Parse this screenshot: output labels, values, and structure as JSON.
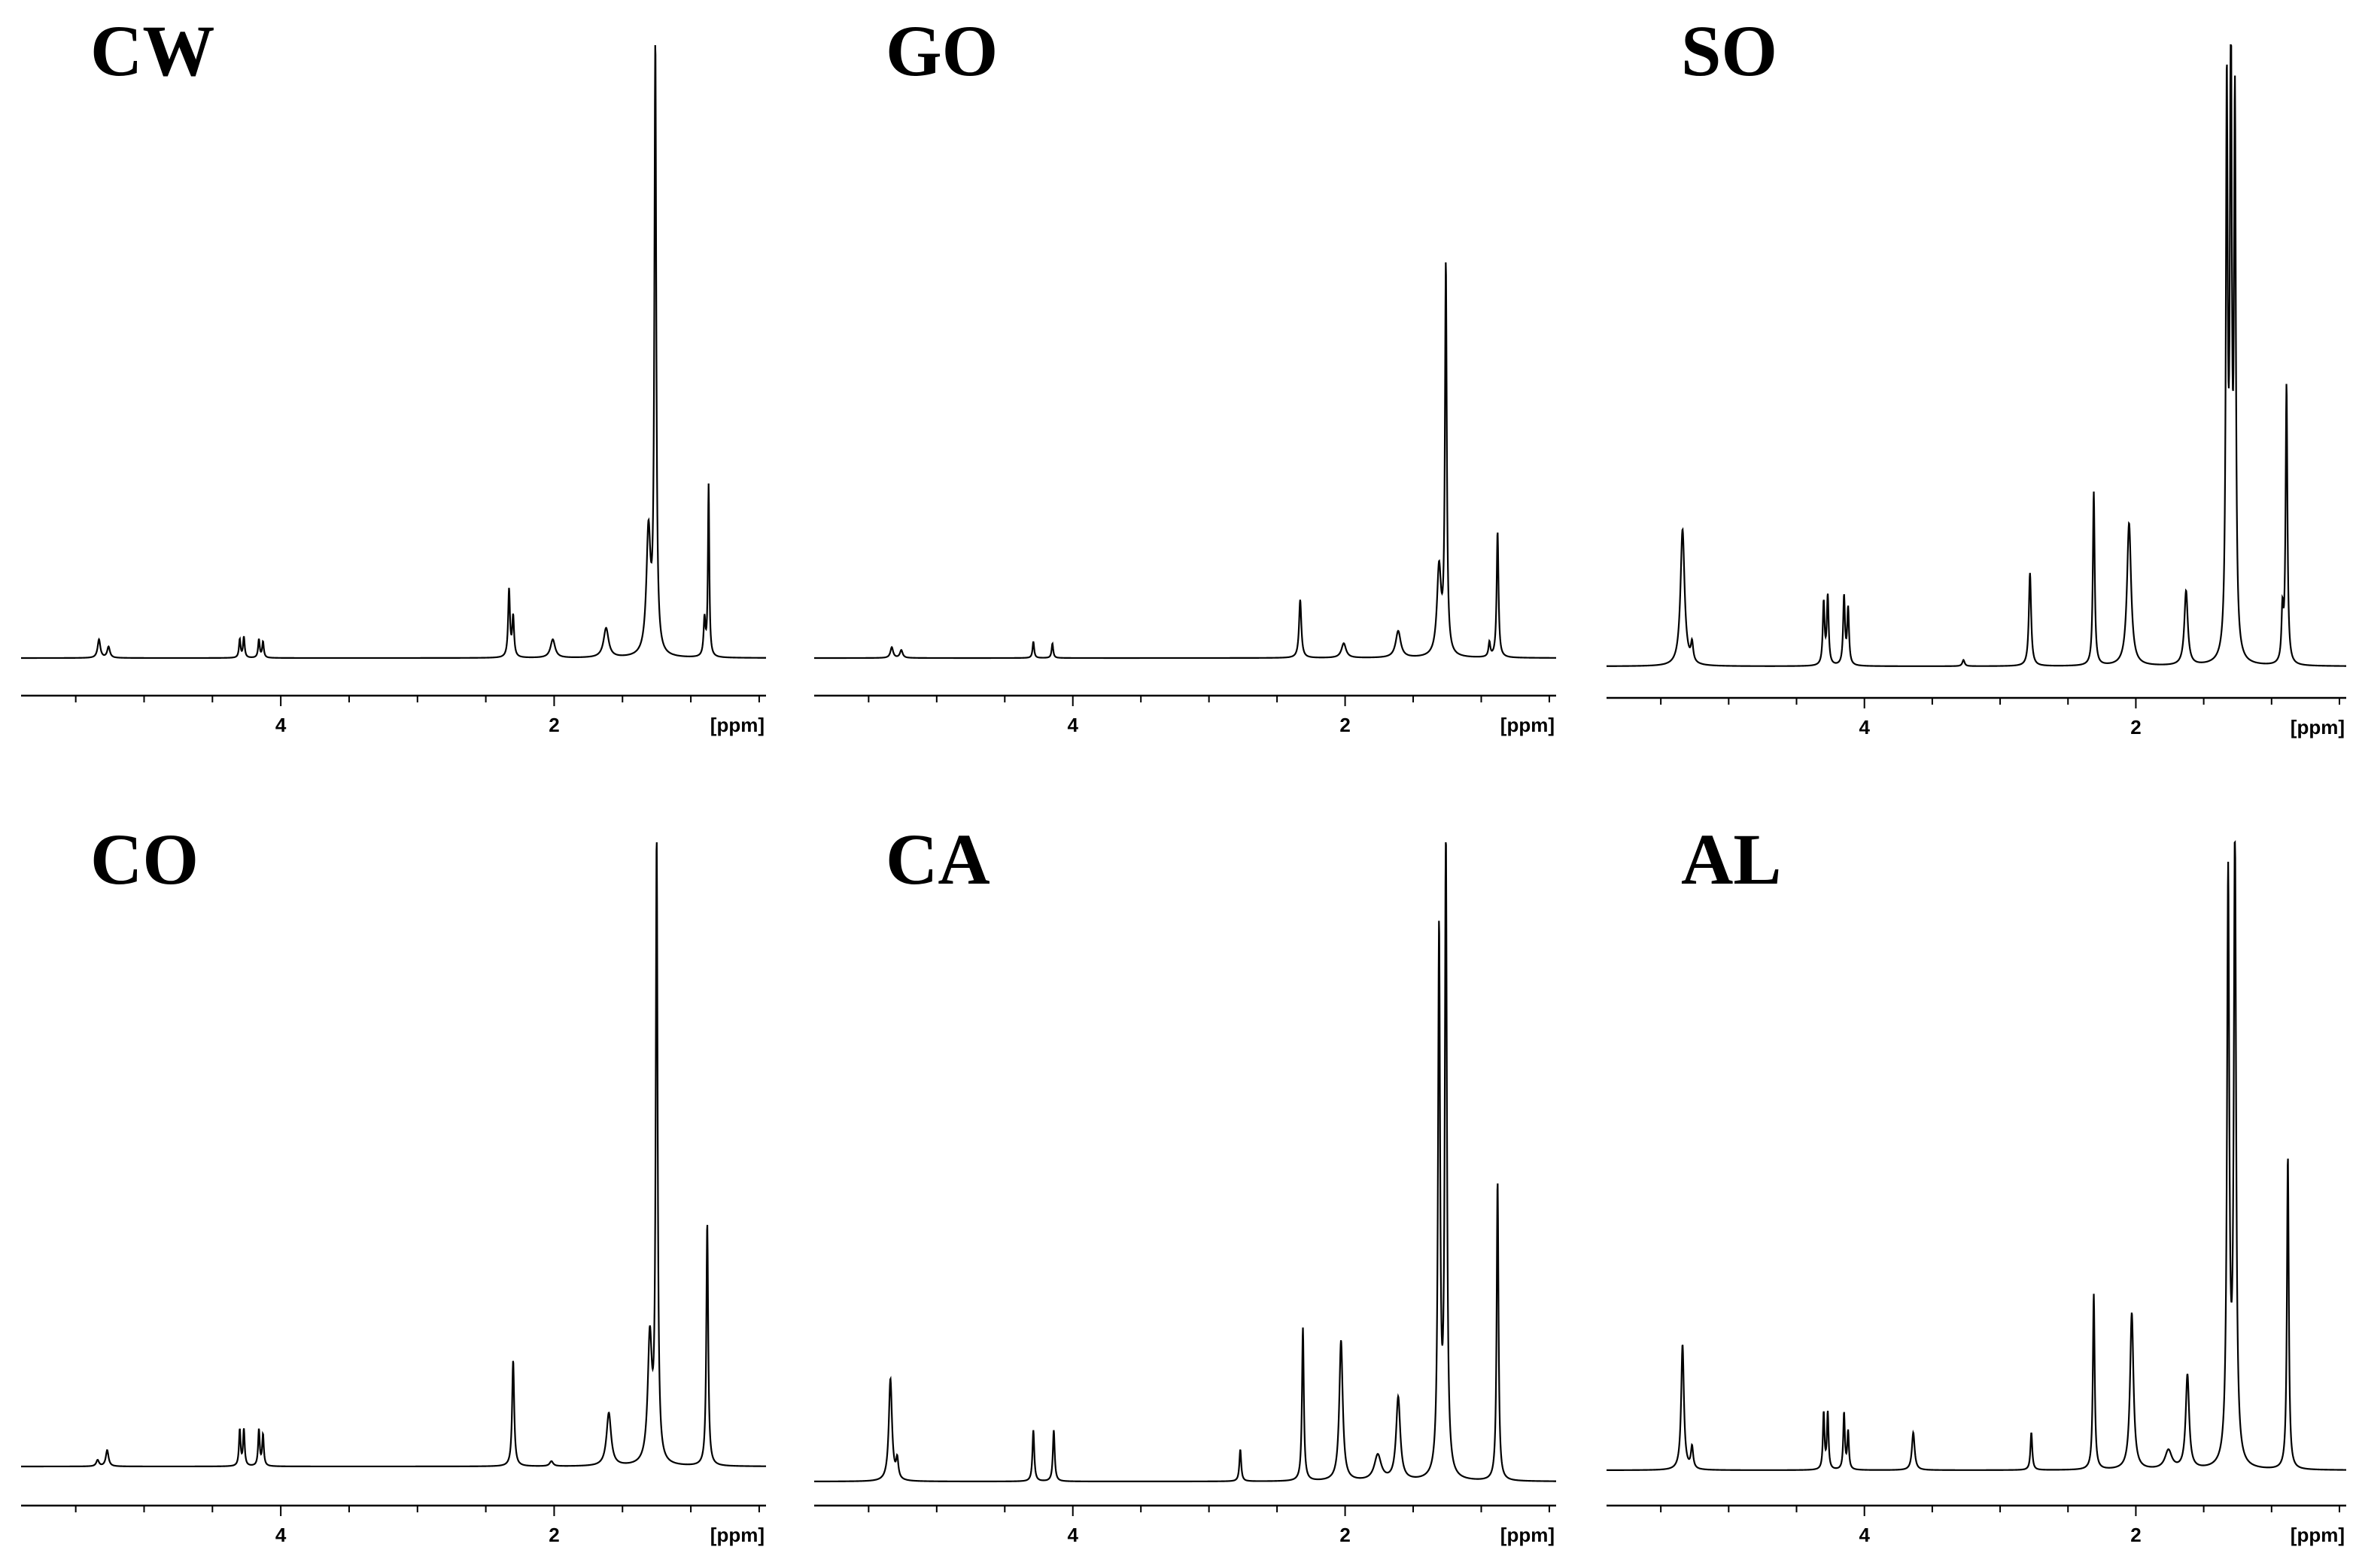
{
  "figure": {
    "layout": "2 rows x 3 columns",
    "line_color": "#000000",
    "background": "#ffffff"
  },
  "chart_data": [
    {
      "type": "line",
      "title": "CW",
      "xlabel": "[ppm]",
      "ylabel": "",
      "xlim": [
        5.9,
        0.45
      ],
      "x_reversed": true,
      "x_ticks": [
        4,
        2
      ],
      "y_axis_shown": false,
      "series": [
        {
          "peaks": [
            {
              "x": 5.33,
              "h": 0.03,
              "w": 0.012
            },
            {
              "x": 5.26,
              "h": 0.018,
              "w": 0.012
            },
            {
              "x": 4.3,
              "h": 0.03,
              "w": 0.007
            },
            {
              "x": 4.27,
              "h": 0.034,
              "w": 0.007
            },
            {
              "x": 4.16,
              "h": 0.03,
              "w": 0.007
            },
            {
              "x": 4.13,
              "h": 0.026,
              "w": 0.007
            },
            {
              "x": 2.33,
              "h": 0.11,
              "w": 0.008
            },
            {
              "x": 2.3,
              "h": 0.065,
              "w": 0.008
            },
            {
              "x": 2.01,
              "h": 0.03,
              "w": 0.02
            },
            {
              "x": 1.62,
              "h": 0.048,
              "w": 0.022
            },
            {
              "x": 1.31,
              "h": 0.2,
              "w": 0.018
            },
            {
              "x": 1.26,
              "h": 1.0,
              "w": 0.008
            },
            {
              "x": 0.9,
              "h": 0.06,
              "w": 0.008
            },
            {
              "x": 0.87,
              "h": 0.28,
              "w": 0.006
            }
          ]
        }
      ]
    },
    {
      "type": "line",
      "title": "GO",
      "xlabel": "[ppm]",
      "ylabel": "",
      "xlim": [
        5.9,
        0.45
      ],
      "x_reversed": true,
      "x_ticks": [
        4,
        2
      ],
      "y_axis_shown": false,
      "series": [
        {
          "peaks": [
            {
              "x": 5.33,
              "h": 0.022,
              "w": 0.012
            },
            {
              "x": 5.26,
              "h": 0.016,
              "w": 0.012
            },
            {
              "x": 4.29,
              "h": 0.034,
              "w": 0.007
            },
            {
              "x": 4.15,
              "h": 0.03,
              "w": 0.007
            },
            {
              "x": 2.33,
              "h": 0.12,
              "w": 0.01
            },
            {
              "x": 2.01,
              "h": 0.03,
              "w": 0.02
            },
            {
              "x": 1.61,
              "h": 0.055,
              "w": 0.022
            },
            {
              "x": 1.31,
              "h": 0.18,
              "w": 0.018
            },
            {
              "x": 1.26,
              "h": 0.8,
              "w": 0.008
            },
            {
              "x": 0.94,
              "h": 0.03,
              "w": 0.008
            },
            {
              "x": 0.88,
              "h": 0.26,
              "w": 0.008
            }
          ]
        }
      ]
    },
    {
      "type": "line",
      "title": "SO",
      "xlabel": "[ppm]",
      "ylabel": "",
      "xlim": [
        5.9,
        0.45
      ],
      "x_reversed": true,
      "x_ticks": [
        4,
        2
      ],
      "y_axis_shown": false,
      "series": [
        {
          "peaks": [
            {
              "x": 5.34,
              "h": 0.22,
              "w": 0.018
            },
            {
              "x": 5.27,
              "h": 0.03,
              "w": 0.01
            },
            {
              "x": 4.3,
              "h": 0.1,
              "w": 0.008
            },
            {
              "x": 4.27,
              "h": 0.11,
              "w": 0.008
            },
            {
              "x": 4.15,
              "h": 0.11,
              "w": 0.008
            },
            {
              "x": 4.12,
              "h": 0.09,
              "w": 0.008
            },
            {
              "x": 3.27,
              "h": 0.01,
              "w": 0.01
            },
            {
              "x": 2.78,
              "h": 0.15,
              "w": 0.01
            },
            {
              "x": 2.31,
              "h": 0.28,
              "w": 0.008
            },
            {
              "x": 2.05,
              "h": 0.23,
              "w": 0.018
            },
            {
              "x": 1.63,
              "h": 0.12,
              "w": 0.015
            },
            {
              "x": 1.33,
              "h": 0.9,
              "w": 0.008
            },
            {
              "x": 1.3,
              "h": 1.0,
              "w": 0.008
            },
            {
              "x": 1.27,
              "h": 0.87,
              "w": 0.008
            },
            {
              "x": 0.92,
              "h": 0.08,
              "w": 0.008
            },
            {
              "x": 0.89,
              "h": 0.45,
              "w": 0.008
            }
          ]
        }
      ]
    },
    {
      "type": "line",
      "title": "CO",
      "xlabel": "[ppm]",
      "ylabel": "",
      "xlim": [
        5.9,
        0.45
      ],
      "x_reversed": true,
      "x_ticks": [
        4,
        2
      ],
      "y_axis_shown": false,
      "series": [
        {
          "peaks": [
            {
              "x": 5.34,
              "h": 0.01,
              "w": 0.012
            },
            {
              "x": 5.27,
              "h": 0.026,
              "w": 0.012
            },
            {
              "x": 4.3,
              "h": 0.058,
              "w": 0.007
            },
            {
              "x": 4.27,
              "h": 0.058,
              "w": 0.007
            },
            {
              "x": 4.16,
              "h": 0.058,
              "w": 0.007
            },
            {
              "x": 4.13,
              "h": 0.05,
              "w": 0.007
            },
            {
              "x": 2.3,
              "h": 0.17,
              "w": 0.009
            },
            {
              "x": 2.02,
              "h": 0.008,
              "w": 0.015
            },
            {
              "x": 1.6,
              "h": 0.085,
              "w": 0.02
            },
            {
              "x": 1.3,
              "h": 0.2,
              "w": 0.018
            },
            {
              "x": 1.25,
              "h": 1.0,
              "w": 0.008
            },
            {
              "x": 0.88,
              "h": 0.39,
              "w": 0.008
            }
          ]
        }
      ]
    },
    {
      "type": "line",
      "title": "CA",
      "xlabel": "[ppm]",
      "ylabel": "",
      "xlim": [
        5.9,
        0.45
      ],
      "x_reversed": true,
      "x_ticks": [
        4,
        2
      ],
      "y_axis_shown": false,
      "series": [
        {
          "peaks": [
            {
              "x": 5.34,
              "h": 0.16,
              "w": 0.014
            },
            {
              "x": 5.29,
              "h": 0.03,
              "w": 0.01
            },
            {
              "x": 4.29,
              "h": 0.08,
              "w": 0.008
            },
            {
              "x": 4.14,
              "h": 0.08,
              "w": 0.008
            },
            {
              "x": 2.77,
              "h": 0.05,
              "w": 0.008
            },
            {
              "x": 2.31,
              "h": 0.24,
              "w": 0.008
            },
            {
              "x": 2.03,
              "h": 0.22,
              "w": 0.015
            },
            {
              "x": 1.76,
              "h": 0.04,
              "w": 0.03
            },
            {
              "x": 1.61,
              "h": 0.13,
              "w": 0.018
            },
            {
              "x": 1.31,
              "h": 0.85,
              "w": 0.009
            },
            {
              "x": 1.26,
              "h": 1.0,
              "w": 0.009
            },
            {
              "x": 0.88,
              "h": 0.47,
              "w": 0.008
            }
          ]
        }
      ]
    },
    {
      "type": "line",
      "title": "AL",
      "xlabel": "[ppm]",
      "ylabel": "",
      "xlim": [
        5.9,
        0.45
      ],
      "x_reversed": true,
      "x_ticks": [
        4,
        2
      ],
      "y_axis_shown": false,
      "series": [
        {
          "peaks": [
            {
              "x": 5.34,
              "h": 0.2,
              "w": 0.012
            },
            {
              "x": 5.27,
              "h": 0.035,
              "w": 0.01
            },
            {
              "x": 4.3,
              "h": 0.09,
              "w": 0.007
            },
            {
              "x": 4.27,
              "h": 0.09,
              "w": 0.007
            },
            {
              "x": 4.15,
              "h": 0.09,
              "w": 0.007
            },
            {
              "x": 4.12,
              "h": 0.06,
              "w": 0.007
            },
            {
              "x": 3.64,
              "h": 0.06,
              "w": 0.012
            },
            {
              "x": 2.77,
              "h": 0.06,
              "w": 0.008
            },
            {
              "x": 2.31,
              "h": 0.28,
              "w": 0.008
            },
            {
              "x": 2.03,
              "h": 0.25,
              "w": 0.015
            },
            {
              "x": 1.76,
              "h": 0.03,
              "w": 0.03
            },
            {
              "x": 1.62,
              "h": 0.15,
              "w": 0.015
            },
            {
              "x": 1.32,
              "h": 0.93,
              "w": 0.01
            },
            {
              "x": 1.27,
              "h": 1.0,
              "w": 0.01
            },
            {
              "x": 0.88,
              "h": 0.5,
              "w": 0.008
            }
          ]
        }
      ]
    }
  ]
}
